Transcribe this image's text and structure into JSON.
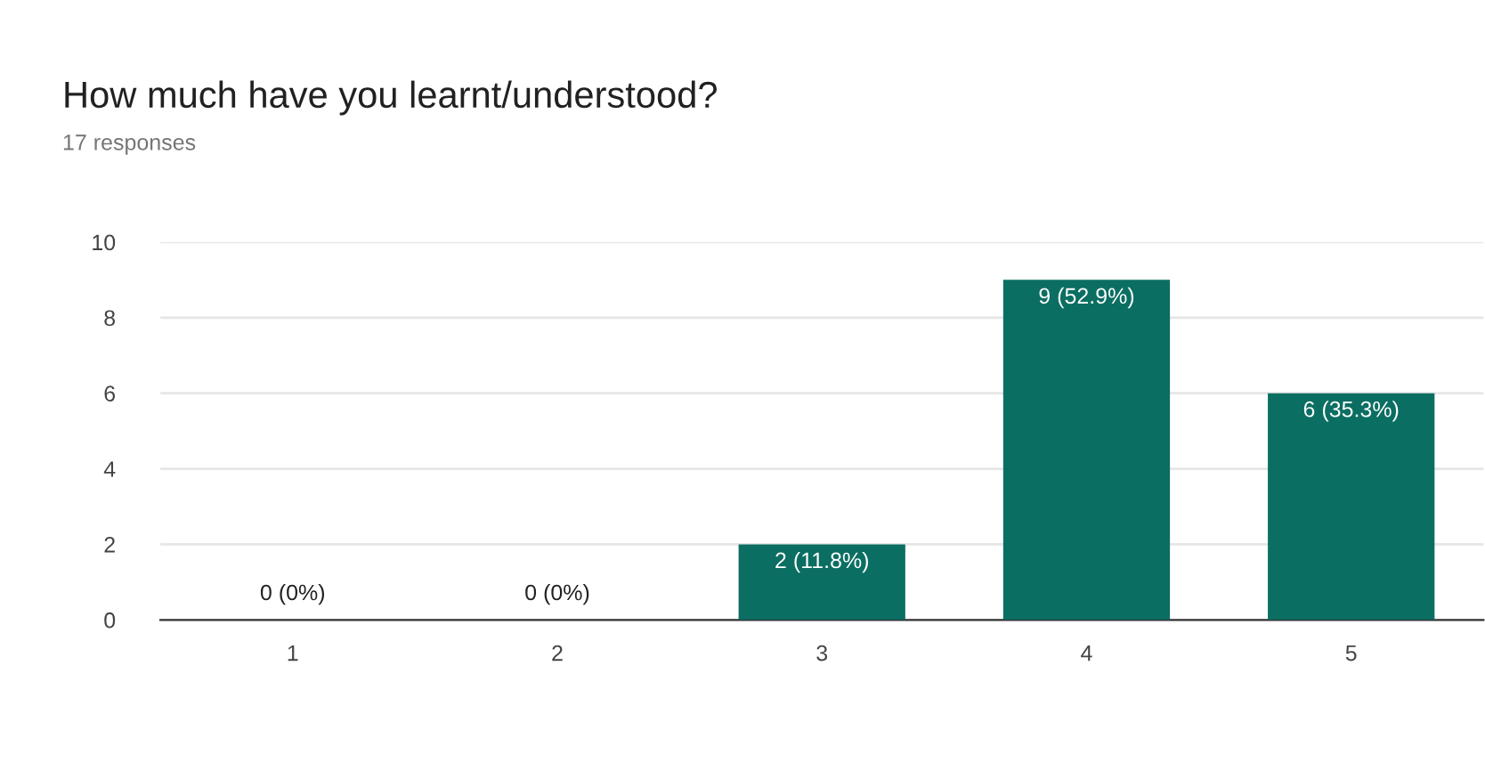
{
  "chart_data": {
    "type": "bar",
    "title": "How much have you learnt/understood?",
    "subtitle": "17 responses",
    "categories": [
      "1",
      "2",
      "3",
      "4",
      "5"
    ],
    "values": [
      0,
      0,
      2,
      9,
      6
    ],
    "value_labels": [
      "0 (0%)",
      "0 (0%)",
      "2 (11.8%)",
      "9 (52.9%)",
      "6 (35.3%)"
    ],
    "color": "#0b6e62",
    "ylim": [
      0,
      10
    ],
    "yticks": [
      0,
      2,
      4,
      6,
      8,
      10
    ],
    "grid": "y",
    "legend": false
  }
}
